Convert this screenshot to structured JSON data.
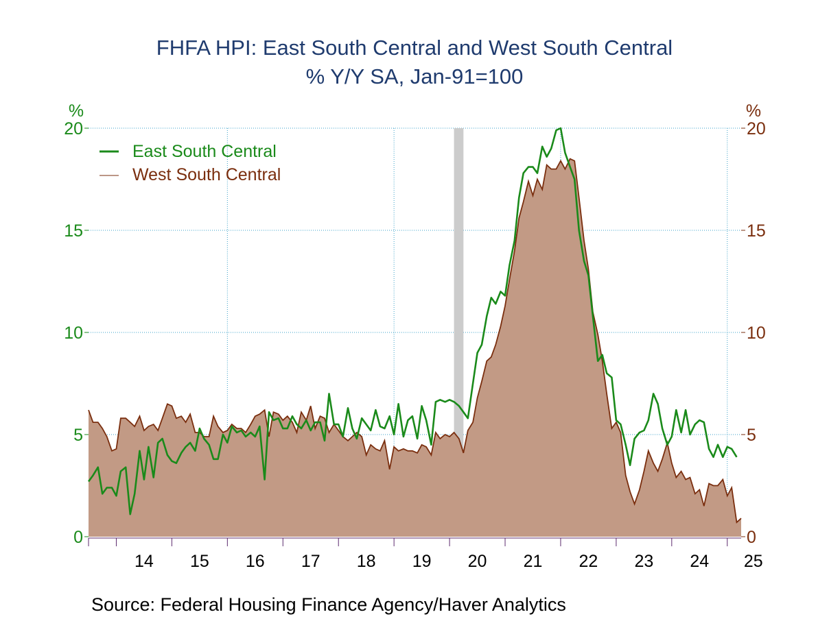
{
  "chart_data": {
    "type": "area",
    "title": "FHFA HPI: East South Central and West South Central",
    "subtitle": "% Y/Y     SA, Jan-91=100",
    "ylabel_left": "%",
    "ylabel_right": "%",
    "ylim": [
      0,
      20
    ],
    "yticks": [
      0,
      5,
      10,
      15,
      20
    ],
    "xlim": [
      2013.5,
      2025.25
    ],
    "xticks": [
      "14",
      "15",
      "16",
      "17",
      "18",
      "19",
      "20",
      "21",
      "22",
      "23",
      "24",
      "25"
    ],
    "grid": true,
    "legend_position": "top-left",
    "recession_band": [
      2020.08,
      2020.25
    ],
    "series": [
      {
        "name": "East South Central",
        "style": "line",
        "color": "#1a8a1a",
        "points": [
          [
            2013.5,
            2.7
          ],
          [
            2013.58,
            3.0
          ],
          [
            2013.67,
            3.4
          ],
          [
            2013.75,
            2.1
          ],
          [
            2013.83,
            2.4
          ],
          [
            2013.92,
            2.4
          ],
          [
            2014.0,
            2.0
          ],
          [
            2014.08,
            3.2
          ],
          [
            2014.17,
            3.4
          ],
          [
            2014.25,
            1.1
          ],
          [
            2014.33,
            2.1
          ],
          [
            2014.42,
            4.2
          ],
          [
            2014.5,
            2.8
          ],
          [
            2014.58,
            4.4
          ],
          [
            2014.67,
            2.9
          ],
          [
            2014.75,
            4.6
          ],
          [
            2014.83,
            4.8
          ],
          [
            2014.92,
            4.0
          ],
          [
            2015.0,
            3.7
          ],
          [
            2015.08,
            3.6
          ],
          [
            2015.17,
            4.1
          ],
          [
            2015.25,
            4.4
          ],
          [
            2015.33,
            4.6
          ],
          [
            2015.42,
            4.2
          ],
          [
            2015.5,
            5.3
          ],
          [
            2015.58,
            4.8
          ],
          [
            2015.67,
            4.5
          ],
          [
            2015.75,
            3.8
          ],
          [
            2015.83,
            3.8
          ],
          [
            2015.92,
            5.0
          ],
          [
            2016.0,
            4.6
          ],
          [
            2016.08,
            5.4
          ],
          [
            2016.17,
            5.1
          ],
          [
            2016.25,
            5.2
          ],
          [
            2016.33,
            4.9
          ],
          [
            2016.42,
            5.1
          ],
          [
            2016.5,
            4.9
          ],
          [
            2016.58,
            5.4
          ],
          [
            2016.67,
            2.8
          ],
          [
            2016.75,
            6.1
          ],
          [
            2016.83,
            5.7
          ],
          [
            2016.92,
            5.8
          ],
          [
            2017.0,
            5.3
          ],
          [
            2017.08,
            5.3
          ],
          [
            2017.17,
            5.9
          ],
          [
            2017.25,
            5.5
          ],
          [
            2017.33,
            5.3
          ],
          [
            2017.42,
            5.7
          ],
          [
            2017.5,
            5.2
          ],
          [
            2017.58,
            5.6
          ],
          [
            2017.67,
            5.6
          ],
          [
            2017.75,
            4.7
          ],
          [
            2017.83,
            7.0
          ],
          [
            2017.92,
            5.5
          ],
          [
            2018.0,
            5.5
          ],
          [
            2018.08,
            4.9
          ],
          [
            2018.17,
            6.3
          ],
          [
            2018.25,
            5.3
          ],
          [
            2018.33,
            4.8
          ],
          [
            2018.42,
            5.8
          ],
          [
            2018.5,
            5.5
          ],
          [
            2018.58,
            5.2
          ],
          [
            2018.67,
            6.2
          ],
          [
            2018.75,
            5.4
          ],
          [
            2018.83,
            5.3
          ],
          [
            2018.92,
            5.9
          ],
          [
            2019.0,
            5.0
          ],
          [
            2019.08,
            6.5
          ],
          [
            2019.17,
            4.9
          ],
          [
            2019.25,
            5.7
          ],
          [
            2019.33,
            5.9
          ],
          [
            2019.42,
            4.8
          ],
          [
            2019.5,
            6.4
          ],
          [
            2019.58,
            5.7
          ],
          [
            2019.67,
            4.5
          ],
          [
            2019.75,
            6.6
          ],
          [
            2019.83,
            6.7
          ],
          [
            2019.92,
            6.6
          ],
          [
            2020.0,
            6.7
          ],
          [
            2020.08,
            6.6
          ],
          [
            2020.17,
            6.4
          ],
          [
            2020.25,
            6.1
          ],
          [
            2020.33,
            5.8
          ],
          [
            2020.42,
            7.5
          ],
          [
            2020.5,
            9.0
          ],
          [
            2020.58,
            9.4
          ],
          [
            2020.67,
            10.8
          ],
          [
            2020.75,
            11.7
          ],
          [
            2020.83,
            11.4
          ],
          [
            2020.92,
            12.0
          ],
          [
            2021.0,
            11.8
          ],
          [
            2021.08,
            13.3
          ],
          [
            2021.17,
            14.5
          ],
          [
            2021.25,
            16.6
          ],
          [
            2021.33,
            17.8
          ],
          [
            2021.42,
            18.1
          ],
          [
            2021.5,
            18.1
          ],
          [
            2021.58,
            17.8
          ],
          [
            2021.67,
            19.1
          ],
          [
            2021.75,
            18.6
          ],
          [
            2021.83,
            19.0
          ],
          [
            2021.92,
            19.9
          ],
          [
            2022.0,
            20.0
          ],
          [
            2022.08,
            18.8
          ],
          [
            2022.17,
            18.1
          ],
          [
            2022.25,
            17.5
          ],
          [
            2022.33,
            15.0
          ],
          [
            2022.42,
            13.5
          ],
          [
            2022.5,
            12.8
          ],
          [
            2022.58,
            10.8
          ],
          [
            2022.67,
            8.6
          ],
          [
            2022.75,
            8.9
          ],
          [
            2022.83,
            8.0
          ],
          [
            2022.92,
            7.8
          ],
          [
            2023.0,
            5.7
          ],
          [
            2023.08,
            5.5
          ],
          [
            2023.17,
            4.5
          ],
          [
            2023.25,
            3.5
          ],
          [
            2023.33,
            4.8
          ],
          [
            2023.42,
            5.1
          ],
          [
            2023.5,
            5.2
          ],
          [
            2023.58,
            5.7
          ],
          [
            2023.67,
            7.0
          ],
          [
            2023.75,
            6.5
          ],
          [
            2023.83,
            5.3
          ],
          [
            2023.92,
            4.5
          ],
          [
            2024.0,
            4.9
          ],
          [
            2024.08,
            6.2
          ],
          [
            2024.17,
            5.1
          ],
          [
            2024.25,
            6.2
          ],
          [
            2024.33,
            5.0
          ],
          [
            2024.42,
            5.5
          ],
          [
            2024.5,
            5.7
          ],
          [
            2024.58,
            5.6
          ],
          [
            2024.67,
            4.3
          ],
          [
            2024.75,
            3.9
          ],
          [
            2024.83,
            4.5
          ],
          [
            2024.92,
            3.9
          ],
          [
            2025.0,
            4.4
          ],
          [
            2025.08,
            4.3
          ],
          [
            2025.17,
            3.9
          ]
        ]
      },
      {
        "name": "West South Central",
        "style": "area",
        "color": "#c29a85",
        "line_color": "#7a2e0e",
        "points": [
          [
            2013.5,
            6.2
          ],
          [
            2013.58,
            5.6
          ],
          [
            2013.67,
            5.6
          ],
          [
            2013.75,
            5.3
          ],
          [
            2013.83,
            4.9
          ],
          [
            2013.92,
            4.2
          ],
          [
            2014.0,
            4.3
          ],
          [
            2014.08,
            5.8
          ],
          [
            2014.17,
            5.8
          ],
          [
            2014.25,
            5.6
          ],
          [
            2014.33,
            5.4
          ],
          [
            2014.42,
            5.9
          ],
          [
            2014.5,
            5.2
          ],
          [
            2014.58,
            5.4
          ],
          [
            2014.67,
            5.5
          ],
          [
            2014.75,
            5.2
          ],
          [
            2014.83,
            5.8
          ],
          [
            2014.92,
            6.5
          ],
          [
            2015.0,
            6.4
          ],
          [
            2015.08,
            5.8
          ],
          [
            2015.17,
            5.9
          ],
          [
            2015.25,
            5.6
          ],
          [
            2015.33,
            6.0
          ],
          [
            2015.42,
            5.1
          ],
          [
            2015.5,
            5.1
          ],
          [
            2015.58,
            4.9
          ],
          [
            2015.67,
            4.9
          ],
          [
            2015.75,
            5.9
          ],
          [
            2015.83,
            5.4
          ],
          [
            2015.92,
            5.1
          ],
          [
            2016.0,
            5.2
          ],
          [
            2016.08,
            5.5
          ],
          [
            2016.17,
            5.3
          ],
          [
            2016.25,
            5.3
          ],
          [
            2016.33,
            5.1
          ],
          [
            2016.42,
            5.5
          ],
          [
            2016.5,
            5.9
          ],
          [
            2016.58,
            6.0
          ],
          [
            2016.67,
            6.2
          ],
          [
            2016.75,
            4.9
          ],
          [
            2016.83,
            6.1
          ],
          [
            2016.92,
            6.0
          ],
          [
            2017.0,
            5.7
          ],
          [
            2017.08,
            5.9
          ],
          [
            2017.17,
            5.6
          ],
          [
            2017.25,
            5.1
          ],
          [
            2017.33,
            6.1
          ],
          [
            2017.42,
            5.7
          ],
          [
            2017.5,
            6.4
          ],
          [
            2017.58,
            5.3
          ],
          [
            2017.67,
            5.9
          ],
          [
            2017.75,
            5.8
          ],
          [
            2017.83,
            5.1
          ],
          [
            2017.92,
            5.5
          ],
          [
            2018.0,
            5.2
          ],
          [
            2018.08,
            4.9
          ],
          [
            2018.17,
            4.7
          ],
          [
            2018.25,
            4.9
          ],
          [
            2018.33,
            5.1
          ],
          [
            2018.42,
            4.9
          ],
          [
            2018.5,
            4.0
          ],
          [
            2018.58,
            4.5
          ],
          [
            2018.67,
            4.3
          ],
          [
            2018.75,
            4.2
          ],
          [
            2018.83,
            4.7
          ],
          [
            2018.92,
            3.3
          ],
          [
            2019.0,
            4.4
          ],
          [
            2019.08,
            4.2
          ],
          [
            2019.17,
            4.3
          ],
          [
            2019.25,
            4.2
          ],
          [
            2019.33,
            4.2
          ],
          [
            2019.42,
            4.1
          ],
          [
            2019.5,
            4.5
          ],
          [
            2019.58,
            4.4
          ],
          [
            2019.67,
            4.0
          ],
          [
            2019.75,
            5.1
          ],
          [
            2019.83,
            4.8
          ],
          [
            2019.92,
            5.0
          ],
          [
            2020.0,
            4.9
          ],
          [
            2020.08,
            5.1
          ],
          [
            2020.17,
            4.8
          ],
          [
            2020.25,
            4.1
          ],
          [
            2020.33,
            5.2
          ],
          [
            2020.42,
            5.6
          ],
          [
            2020.5,
            6.8
          ],
          [
            2020.58,
            7.6
          ],
          [
            2020.67,
            8.6
          ],
          [
            2020.75,
            8.8
          ],
          [
            2020.83,
            9.4
          ],
          [
            2020.92,
            10.3
          ],
          [
            2021.0,
            11.3
          ],
          [
            2021.08,
            12.6
          ],
          [
            2021.17,
            14.0
          ],
          [
            2021.25,
            15.6
          ],
          [
            2021.33,
            16.4
          ],
          [
            2021.42,
            17.4
          ],
          [
            2021.5,
            16.7
          ],
          [
            2021.58,
            17.5
          ],
          [
            2021.67,
            17.0
          ],
          [
            2021.75,
            18.2
          ],
          [
            2021.83,
            18.0
          ],
          [
            2021.92,
            18.0
          ],
          [
            2022.0,
            18.4
          ],
          [
            2022.08,
            18.0
          ],
          [
            2022.17,
            18.5
          ],
          [
            2022.25,
            18.4
          ],
          [
            2022.33,
            16.6
          ],
          [
            2022.42,
            14.5
          ],
          [
            2022.5,
            13.1
          ],
          [
            2022.58,
            11.0
          ],
          [
            2022.67,
            9.9
          ],
          [
            2022.75,
            8.6
          ],
          [
            2022.83,
            7.0
          ],
          [
            2022.92,
            5.3
          ],
          [
            2023.0,
            5.6
          ],
          [
            2023.08,
            5.1
          ],
          [
            2023.17,
            3.0
          ],
          [
            2023.25,
            2.2
          ],
          [
            2023.33,
            1.6
          ],
          [
            2023.42,
            2.3
          ],
          [
            2023.5,
            3.2
          ],
          [
            2023.58,
            4.2
          ],
          [
            2023.67,
            3.6
          ],
          [
            2023.75,
            3.2
          ],
          [
            2023.83,
            3.8
          ],
          [
            2023.92,
            4.6
          ],
          [
            2024.0,
            3.6
          ],
          [
            2024.08,
            2.9
          ],
          [
            2024.17,
            3.2
          ],
          [
            2024.25,
            2.8
          ],
          [
            2024.33,
            2.9
          ],
          [
            2024.42,
            2.1
          ],
          [
            2024.5,
            2.3
          ],
          [
            2024.58,
            1.5
          ],
          [
            2024.67,
            2.6
          ],
          [
            2024.75,
            2.5
          ],
          [
            2024.83,
            2.5
          ],
          [
            2024.92,
            2.8
          ],
          [
            2025.0,
            2.0
          ],
          [
            2025.08,
            2.4
          ],
          [
            2025.17,
            0.7
          ],
          [
            2025.25,
            0.9
          ]
        ]
      }
    ],
    "source": "Source:  Federal Housing Finance Agency/Haver Analytics"
  }
}
